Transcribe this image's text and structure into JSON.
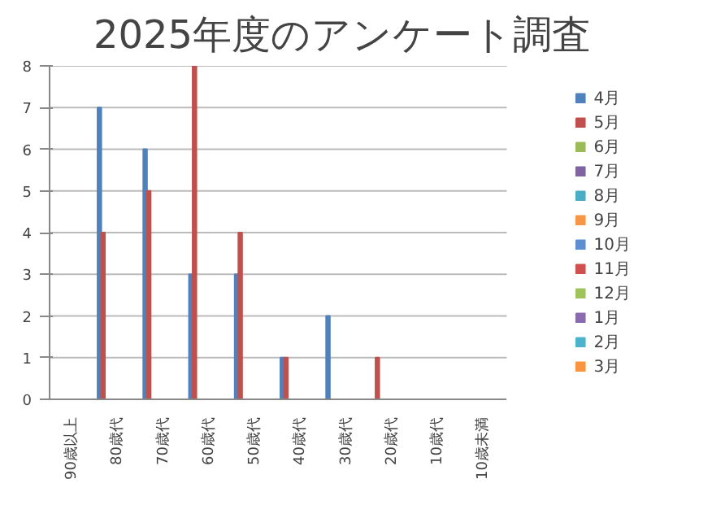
{
  "chart_data": {
    "type": "bar",
    "title": "2025年度のアンケート調査",
    "categories": [
      "90歳以上",
      "80歳代",
      "70歳代",
      "60歳代",
      "50歳代",
      "40歳代",
      "30歳代",
      "20歳代",
      "10歳代",
      "10歳未満"
    ],
    "series": [
      {
        "name": "4月",
        "color": "#4f81bd",
        "values": [
          0,
          7,
          6,
          3,
          3,
          1,
          2,
          0,
          0,
          0
        ]
      },
      {
        "name": "5月",
        "color": "#c0504d",
        "values": [
          0,
          4,
          5,
          8,
          4,
          1,
          0,
          1,
          0,
          0
        ]
      },
      {
        "name": "6月",
        "color": "#9bbb59",
        "values": [
          null,
          null,
          null,
          null,
          null,
          null,
          null,
          null,
          null,
          null
        ]
      },
      {
        "name": "7月",
        "color": "#8064a2",
        "values": [
          null,
          null,
          null,
          null,
          null,
          null,
          null,
          null,
          null,
          null
        ]
      },
      {
        "name": "8月",
        "color": "#4bacc6",
        "values": [
          null,
          null,
          null,
          null,
          null,
          null,
          null,
          null,
          null,
          null
        ]
      },
      {
        "name": "9月",
        "color": "#f79646",
        "values": [
          null,
          null,
          null,
          null,
          null,
          null,
          null,
          null,
          null,
          null
        ]
      },
      {
        "name": "10月",
        "color": "#5b8fd0",
        "values": [
          null,
          null,
          null,
          null,
          null,
          null,
          null,
          null,
          null,
          null
        ]
      },
      {
        "name": "11月",
        "color": "#d0504f",
        "values": [
          null,
          null,
          null,
          null,
          null,
          null,
          null,
          null,
          null,
          null
        ]
      },
      {
        "name": "12月",
        "color": "#9fc45a",
        "values": [
          null,
          null,
          null,
          null,
          null,
          null,
          null,
          null,
          null,
          null
        ]
      },
      {
        "name": "1月",
        "color": "#8a6bb0",
        "values": [
          null,
          null,
          null,
          null,
          null,
          null,
          null,
          null,
          null,
          null
        ]
      },
      {
        "name": "2月",
        "color": "#4db3cc",
        "values": [
          null,
          null,
          null,
          null,
          null,
          null,
          null,
          null,
          null,
          null
        ]
      },
      {
        "name": "3月",
        "color": "#f9953f",
        "values": [
          null,
          null,
          null,
          null,
          null,
          null,
          null,
          null,
          null,
          null
        ]
      }
    ],
    "ylim": [
      0,
      8
    ],
    "yticks": [
      0,
      1,
      2,
      3,
      4,
      5,
      6,
      7,
      8
    ],
    "grid": "y",
    "legend": "right"
  }
}
